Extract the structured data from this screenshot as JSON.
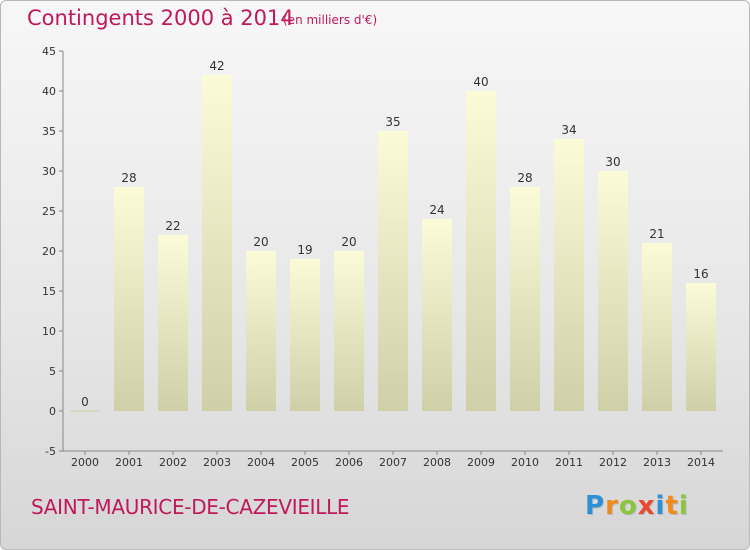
{
  "header": {
    "title": "Contingents 2000 à 2014",
    "subtitle": "(en milliers d'€)"
  },
  "footer": {
    "commune": "SAINT-MAURICE-DE-CAZEVIEILLE",
    "logo_letters": [
      "P",
      "r",
      "o",
      "x",
      "i",
      "t",
      "i"
    ],
    "logo_colors": [
      "#2f8fd6",
      "#f08a1c",
      "#8cc63f",
      "#e84a2f",
      "#2f8fd6",
      "#f08a1c",
      "#8cc63f"
    ]
  },
  "chart_data": {
    "type": "bar",
    "title": "Contingents 2000 à 2014",
    "subtitle": "(en milliers d'€)",
    "categories": [
      "2000",
      "2001",
      "2002",
      "2003",
      "2004",
      "2005",
      "2006",
      "2007",
      "2008",
      "2009",
      "2010",
      "2011",
      "2012",
      "2013",
      "2014"
    ],
    "values": [
      0,
      28,
      22,
      42,
      20,
      19,
      20,
      35,
      24,
      40,
      28,
      34,
      30,
      21,
      16
    ],
    "xlabel": "",
    "ylabel": "",
    "ylim": [
      -5,
      45
    ],
    "yticks": [
      -5,
      0,
      5,
      10,
      15,
      20,
      25,
      30,
      35,
      40,
      45
    ],
    "grid": false,
    "bar_color_top": "#fbfbd8",
    "bar_color_bottom": "#cfcfa8"
  }
}
